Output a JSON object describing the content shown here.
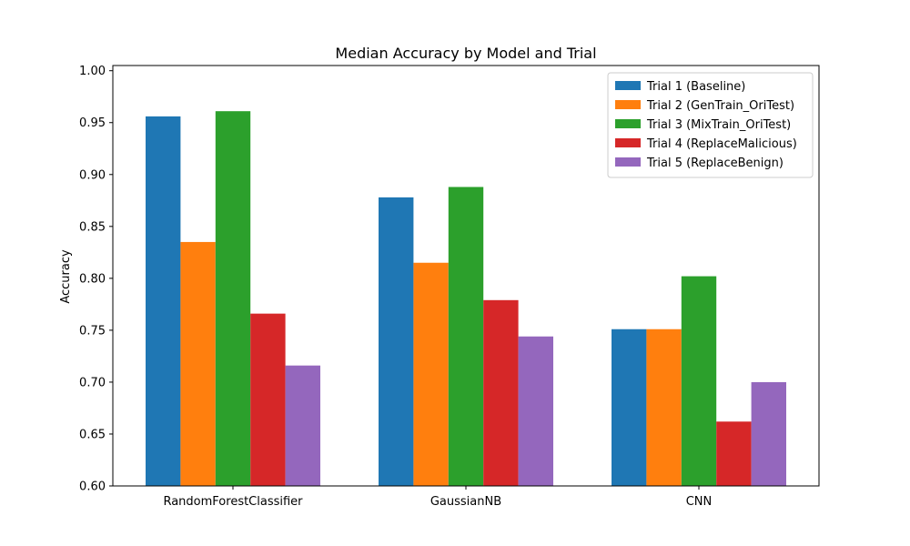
{
  "chart_data": {
    "type": "bar",
    "title": "Median Accuracy by Model and Trial",
    "xlabel": "",
    "ylabel": "Accuracy",
    "ylim": [
      0.6,
      1.005
    ],
    "yticks": [
      "0.60",
      "0.65",
      "0.70",
      "0.75",
      "0.80",
      "0.85",
      "0.90",
      "0.95",
      "1.00"
    ],
    "categories": [
      "RandomForestClassifier",
      "GaussianNB",
      "CNN"
    ],
    "grid": false,
    "legend_position": "top-right",
    "series": [
      {
        "name": "Trial 1 (Baseline)",
        "color": "#1f77b4",
        "values": [
          0.956,
          0.878,
          0.751
        ]
      },
      {
        "name": "Trial 2 (GenTrain_OriTest)",
        "color": "#ff7f0e",
        "values": [
          0.835,
          0.815,
          0.751
        ]
      },
      {
        "name": "Trial 3 (MixTrain_OriTest)",
        "color": "#2ca02c",
        "values": [
          0.961,
          0.888,
          0.802
        ]
      },
      {
        "name": "Trial 4 (ReplaceMalicious)",
        "color": "#d62728",
        "values": [
          0.766,
          0.779,
          0.662
        ]
      },
      {
        "name": "Trial 5 (ReplaceBenign)",
        "color": "#9467bd",
        "values": [
          0.716,
          0.744,
          0.7
        ]
      }
    ]
  }
}
